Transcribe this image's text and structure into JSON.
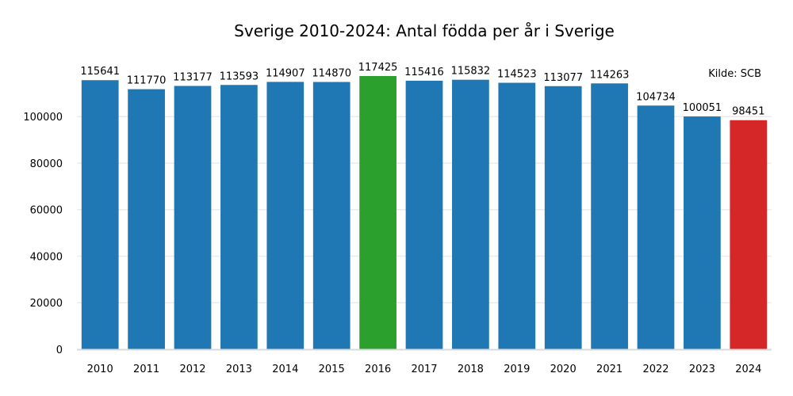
{
  "chart_data": {
    "type": "bar",
    "title": "Sverige 2010-2024: Antal födda per år i Sverige",
    "xlabel": "",
    "ylabel": "",
    "source_note": "Kilde: SCB",
    "categories": [
      "2010",
      "2011",
      "2012",
      "2013",
      "2014",
      "2015",
      "2016",
      "2017",
      "2018",
      "2019",
      "2020",
      "2021",
      "2022",
      "2023",
      "2024"
    ],
    "values": [
      115641,
      111770,
      113177,
      113593,
      114907,
      114870,
      117425,
      115416,
      115832,
      114523,
      113077,
      114263,
      104734,
      100051,
      98451
    ],
    "data_labels": [
      "115641",
      "111770",
      "113177",
      "113593",
      "114907",
      "114870",
      "117425",
      "115416",
      "115832",
      "114523",
      "113077",
      "114263",
      "104734",
      "100051",
      "98451"
    ],
    "bar_colors": [
      "#1f77b4",
      "#1f77b4",
      "#1f77b4",
      "#1f77b4",
      "#1f77b4",
      "#1f77b4",
      "#2ca02c",
      "#1f77b4",
      "#1f77b4",
      "#1f77b4",
      "#1f77b4",
      "#1f77b4",
      "#1f77b4",
      "#1f77b4",
      "#d62728"
    ],
    "ylim": [
      0,
      120000
    ],
    "yticks": [
      0,
      20000,
      40000,
      60000,
      80000,
      100000
    ],
    "ytick_labels": [
      "0",
      "20000",
      "40000",
      "60000",
      "80000",
      "100000"
    ],
    "grid": true,
    "grid_color": "#ebebeb",
    "axis_color": "#d9d9d9"
  }
}
